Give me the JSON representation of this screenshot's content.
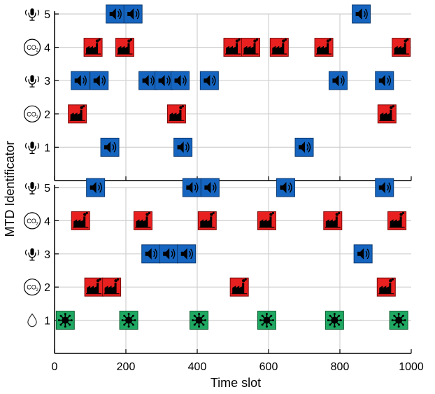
{
  "chart_data": [
    {
      "type": "scatter",
      "title": "",
      "xlabel": "Time slot",
      "ylabel": "MTD Identificator",
      "xlim": [
        0,
        1000
      ],
      "ylim": [
        0,
        5
      ],
      "grid": true,
      "y_ticks": [
        {
          "value": 1,
          "label": "1",
          "icon": "microphone-icon"
        },
        {
          "value": 2,
          "label": "2",
          "icon": "co2-icon"
        },
        {
          "value": 3,
          "label": "3",
          "icon": "microphone-icon"
        },
        {
          "value": 4,
          "label": "4",
          "icon": "co2-icon"
        },
        {
          "value": 5,
          "label": "5",
          "icon": "microphone-icon"
        }
      ],
      "points": [
        {
          "x": 170,
          "y": 5,
          "kind": "speaker"
        },
        {
          "x": 220,
          "y": 5,
          "kind": "speaker"
        },
        {
          "x": 860,
          "y": 5,
          "kind": "speaker"
        },
        {
          "x": 108,
          "y": 4,
          "kind": "factory"
        },
        {
          "x": 197,
          "y": 4,
          "kind": "factory"
        },
        {
          "x": 500,
          "y": 4,
          "kind": "factory"
        },
        {
          "x": 550,
          "y": 4,
          "kind": "factory"
        },
        {
          "x": 630,
          "y": 4,
          "kind": "factory"
        },
        {
          "x": 755,
          "y": 4,
          "kind": "factory"
        },
        {
          "x": 972,
          "y": 4,
          "kind": "factory"
        },
        {
          "x": 72,
          "y": 3,
          "kind": "speaker"
        },
        {
          "x": 125,
          "y": 3,
          "kind": "speaker"
        },
        {
          "x": 262,
          "y": 3,
          "kind": "speaker"
        },
        {
          "x": 307,
          "y": 3,
          "kind": "speaker"
        },
        {
          "x": 352,
          "y": 3,
          "kind": "speaker"
        },
        {
          "x": 434,
          "y": 3,
          "kind": "speaker"
        },
        {
          "x": 795,
          "y": 3,
          "kind": "speaker"
        },
        {
          "x": 925,
          "y": 3,
          "kind": "speaker"
        },
        {
          "x": 64,
          "y": 2,
          "kind": "factory"
        },
        {
          "x": 342,
          "y": 2,
          "kind": "factory"
        },
        {
          "x": 932,
          "y": 2,
          "kind": "factory"
        },
        {
          "x": 155,
          "y": 1,
          "kind": "speaker"
        },
        {
          "x": 360,
          "y": 1,
          "kind": "speaker"
        },
        {
          "x": 700,
          "y": 1,
          "kind": "speaker"
        }
      ]
    },
    {
      "type": "scatter",
      "title": "",
      "xlabel": "Time slot",
      "ylabel": "MTD Identificator",
      "xlim": [
        0,
        1000
      ],
      "ylim": [
        0,
        5
      ],
      "grid": true,
      "x_ticks": [
        "0",
        "200",
        "400",
        "600",
        "800",
        "1000"
      ],
      "y_ticks": [
        {
          "value": 1,
          "label": "1",
          "icon": "water-drop-icon"
        },
        {
          "value": 2,
          "label": "2",
          "icon": "co2-icon"
        },
        {
          "value": 3,
          "label": "3",
          "icon": "microphone-icon"
        },
        {
          "value": 4,
          "label": "4",
          "icon": "co2-icon"
        },
        {
          "value": 5,
          "label": "5",
          "icon": "microphone-icon"
        }
      ],
      "points": [
        {
          "x": 115,
          "y": 5,
          "kind": "speaker"
        },
        {
          "x": 385,
          "y": 5,
          "kind": "speaker"
        },
        {
          "x": 436,
          "y": 5,
          "kind": "speaker"
        },
        {
          "x": 648,
          "y": 5,
          "kind": "speaker"
        },
        {
          "x": 925,
          "y": 5,
          "kind": "speaker"
        },
        {
          "x": 73,
          "y": 4,
          "kind": "factory"
        },
        {
          "x": 248,
          "y": 4,
          "kind": "factory"
        },
        {
          "x": 428,
          "y": 4,
          "kind": "factory"
        },
        {
          "x": 595,
          "y": 4,
          "kind": "factory"
        },
        {
          "x": 780,
          "y": 4,
          "kind": "factory"
        },
        {
          "x": 960,
          "y": 4,
          "kind": "factory"
        },
        {
          "x": 270,
          "y": 3,
          "kind": "speaker"
        },
        {
          "x": 320,
          "y": 3,
          "kind": "speaker"
        },
        {
          "x": 370,
          "y": 3,
          "kind": "speaker"
        },
        {
          "x": 865,
          "y": 3,
          "kind": "speaker"
        },
        {
          "x": 110,
          "y": 2,
          "kind": "factory"
        },
        {
          "x": 160,
          "y": 2,
          "kind": "factory"
        },
        {
          "x": 518,
          "y": 2,
          "kind": "factory"
        },
        {
          "x": 930,
          "y": 2,
          "kind": "factory"
        },
        {
          "x": 30,
          "y": 1,
          "kind": "virus"
        },
        {
          "x": 208,
          "y": 1,
          "kind": "virus"
        },
        {
          "x": 405,
          "y": 1,
          "kind": "virus"
        },
        {
          "x": 595,
          "y": 1,
          "kind": "virus"
        },
        {
          "x": 785,
          "y": 1,
          "kind": "virus"
        },
        {
          "x": 965,
          "y": 1,
          "kind": "virus"
        }
      ]
    }
  ],
  "colors": {
    "speaker": "#1565c0",
    "factory": "#e82020",
    "virus": "#1fa862",
    "grid": "#d0d0d0",
    "axis": "#000000"
  }
}
